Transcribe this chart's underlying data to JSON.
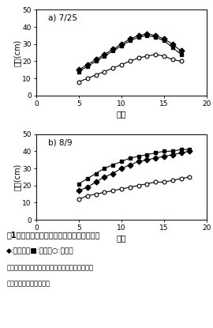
{
  "title_a": "a) 7/25",
  "title_b": "b) 8/9",
  "xlabel": "巉位",
  "ylabel": "巉長(cm)",
  "xlim": [
    0,
    20
  ],
  "ylim": [
    0,
    50
  ],
  "xticks": [
    0,
    5,
    10,
    15,
    20
  ],
  "yticks": [
    0,
    10,
    20,
    30,
    40,
    50
  ],
  "chart_a": {
    "komugi_x": [
      5,
      6,
      7,
      8,
      9,
      10,
      11,
      12,
      13,
      14,
      15,
      16,
      17
    ],
    "komugi_y": [
      15,
      18,
      21,
      24,
      27,
      30,
      33,
      35,
      36,
      35,
      33,
      30,
      26
    ],
    "hadaka_x": [
      5,
      6,
      7,
      8,
      9,
      10,
      11,
      12,
      13,
      14,
      15,
      16,
      17
    ],
    "hadaka_y": [
      14,
      17,
      20,
      23,
      26,
      29,
      32,
      34,
      35,
      34,
      32,
      28,
      24
    ],
    "natane_x": [
      5,
      6,
      7,
      8,
      9,
      10,
      11,
      12,
      13,
      14,
      15,
      16,
      17
    ],
    "natane_y": [
      8,
      10,
      12,
      14,
      16,
      18,
      20,
      22,
      23,
      24,
      23,
      21,
      20
    ]
  },
  "chart_b": {
    "komugi_x": [
      5,
      6,
      7,
      8,
      9,
      10,
      11,
      12,
      13,
      14,
      15,
      16,
      17,
      18
    ],
    "komugi_y": [
      17,
      19,
      22,
      25,
      27,
      30,
      32,
      34,
      35,
      36,
      37,
      38,
      39,
      40
    ],
    "hadaka_x": [
      5,
      6,
      7,
      8,
      9,
      10,
      11,
      12,
      13,
      14,
      15,
      16,
      17,
      18
    ],
    "hadaka_y": [
      21,
      24,
      27,
      30,
      32,
      34,
      36,
      37,
      38,
      39,
      40,
      40,
      41,
      41
    ],
    "natane_x": [
      5,
      6,
      7,
      8,
      9,
      10,
      11,
      12,
      13,
      14,
      15,
      16,
      17,
      18
    ],
    "natane_y": [
      12,
      14,
      15,
      16,
      17,
      18,
      19,
      20,
      21,
      22,
      22,
      23,
      24,
      25
    ]
  },
  "caption_line1": "図1　前作物がヒマワリの巉長に及ぼす影響",
  "caption_line2": "◆:コムギ、■:裸地、○:ナタネ",
  "caption_line3": "前作物残さを放置し、ヒマワリを不耕起播種した",
  "caption_line4": "巉長は上位巉から示した",
  "color_black": "#000000"
}
